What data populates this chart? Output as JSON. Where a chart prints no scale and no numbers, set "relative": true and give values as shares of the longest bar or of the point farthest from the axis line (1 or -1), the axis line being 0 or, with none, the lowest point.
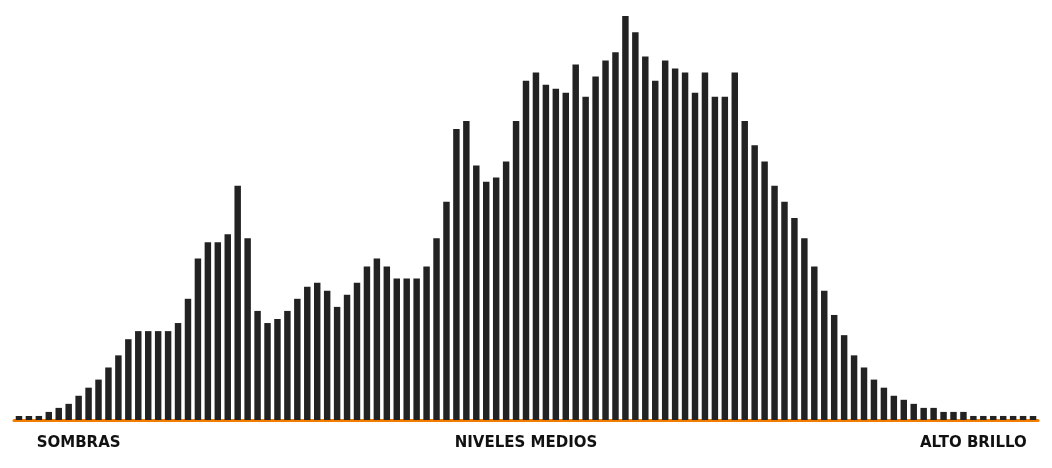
{
  "chart_data": {
    "type": "bar",
    "relative": true,
    "color": "#222222",
    "categories": [
      null,
      null,
      null,
      null,
      null,
      null,
      "SOMBRAS",
      null,
      null,
      null,
      null,
      null,
      null,
      null,
      null,
      null,
      null,
      null,
      null,
      null,
      null,
      null,
      null,
      null,
      null,
      null,
      null,
      null,
      null,
      null,
      null,
      null,
      null,
      null,
      null,
      null,
      null,
      null,
      null,
      null,
      null,
      null,
      null,
      null,
      null,
      null,
      null,
      null,
      null,
      null,
      null,
      "NIVELES MEDIOS",
      null,
      null,
      null,
      null,
      null,
      null,
      null,
      null,
      null,
      null,
      null,
      null,
      null,
      null,
      null,
      null,
      null,
      null,
      null,
      null,
      null,
      null,
      null,
      null,
      null,
      null,
      null,
      null,
      null,
      null,
      null,
      null,
      null,
      null,
      null,
      null,
      null,
      null,
      null,
      null,
      null,
      null,
      null,
      null,
      "ALTO BRILLO",
      null,
      null,
      null,
      null,
      null,
      null
    ],
    "values": [
      0.01,
      0.01,
      0.01,
      0.02,
      0.03,
      0.04,
      0.06,
      0.08,
      0.1,
      0.13,
      0.16,
      0.2,
      0.22,
      0.22,
      0.22,
      0.22,
      0.24,
      0.3,
      0.4,
      0.44,
      0.44,
      0.46,
      0.58,
      0.45,
      0.27,
      0.24,
      0.25,
      0.27,
      0.3,
      0.33,
      0.34,
      0.32,
      0.28,
      0.31,
      0.34,
      0.38,
      0.4,
      0.38,
      0.35,
      0.35,
      0.35,
      0.38,
      0.45,
      0.54,
      0.72,
      0.74,
      0.63,
      0.59,
      0.6,
      0.64,
      0.74,
      0.84,
      0.86,
      0.83,
      0.82,
      0.81,
      0.88,
      0.8,
      0.85,
      0.89,
      0.91,
      1.0,
      0.96,
      0.9,
      0.84,
      0.89,
      0.87,
      0.86,
      0.81,
      0.86,
      0.8,
      0.8,
      0.86,
      0.74,
      0.68,
      0.64,
      0.58,
      0.54,
      0.5,
      0.45,
      0.38,
      0.32,
      0.26,
      0.21,
      0.16,
      0.13,
      0.1,
      0.08,
      0.06,
      0.05,
      0.04,
      0.03,
      0.03,
      0.02,
      0.02,
      0.02,
      0.01,
      0.01,
      0.01,
      0.01,
      0.01,
      0.01,
      0.01
    ]
  }
}
